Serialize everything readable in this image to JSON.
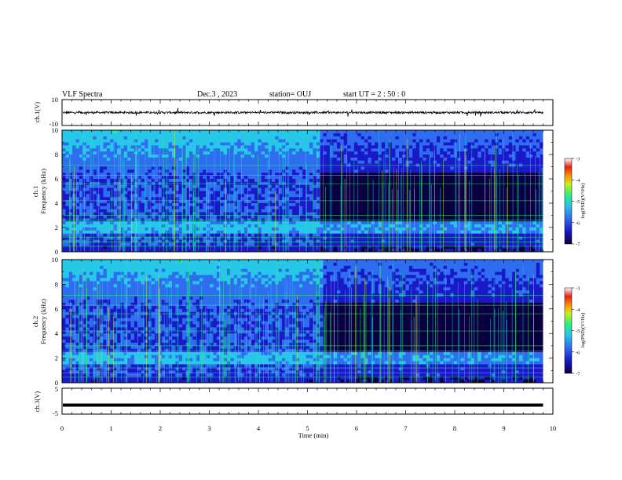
{
  "header": {
    "title": "VLF Spectra",
    "date": "Dec.3 , 2023",
    "station": "station= OUJ",
    "start": "start UT = 2 : 50 : 0"
  },
  "chart_data": {
    "type": "heatmap",
    "x_axis": {
      "label": "Time (min)",
      "range": [
        0,
        10
      ],
      "ticks": [
        "0",
        "1",
        "2",
        "3",
        "4",
        "5",
        "6",
        "7",
        "8",
        "9",
        "10"
      ]
    },
    "panels": [
      {
        "kind": "waveform",
        "ylabel": "ch.1(V)",
        "yticks": [
          "10",
          "-10"
        ],
        "yrange": [
          -10,
          10
        ],
        "baseline": 0,
        "data_end_min": 9.8
      },
      {
        "kind": "spectrogram",
        "ylabel_line1": "ch.1",
        "ylabel_line2": "Frequency (kHz)",
        "yrange": [
          0,
          10
        ],
        "yticks": [
          "0",
          "2",
          "4",
          "6",
          "8",
          "10"
        ],
        "data_end_min": 9.8,
        "transition_min": 5.25,
        "noise_band_khz": [
          1.4,
          2.4
        ],
        "colorbar": {
          "label": "log(PSD)(V²/Hz)",
          "range": [
            -7,
            -3
          ],
          "ticks": [
            "-3",
            "-4",
            "-5",
            "-6",
            "-7"
          ]
        }
      },
      {
        "kind": "spectrogram",
        "ylabel_line1": "ch.2",
        "ylabel_line2": "Frequency (kHz)",
        "yrange": [
          0,
          10
        ],
        "yticks": [
          "0",
          "2",
          "4",
          "6",
          "8",
          "10"
        ],
        "data_end_min": 9.8,
        "transition_min": 5.3,
        "noise_band_khz": [
          1.5,
          2.4
        ],
        "colorbar": {
          "label": "log(PSD)(V²/Hz)",
          "range": [
            -7,
            -3
          ],
          "ticks": [
            "-3",
            "-4",
            "-5",
            "-6",
            "-7"
          ]
        }
      },
      {
        "kind": "flat",
        "ylabel": "ch.3(V)",
        "yticks": [
          "5",
          "-5"
        ],
        "yrange": [
          -5,
          5
        ],
        "value": -1.5,
        "data_end_min": 9.8
      }
    ],
    "colormap": [
      "#0a0040",
      "#1a18c8",
      "#2f6df0",
      "#27c7e8",
      "#2ef07a",
      "#c8f018",
      "#ff9000",
      "#e8201a",
      "#ffffff"
    ]
  }
}
